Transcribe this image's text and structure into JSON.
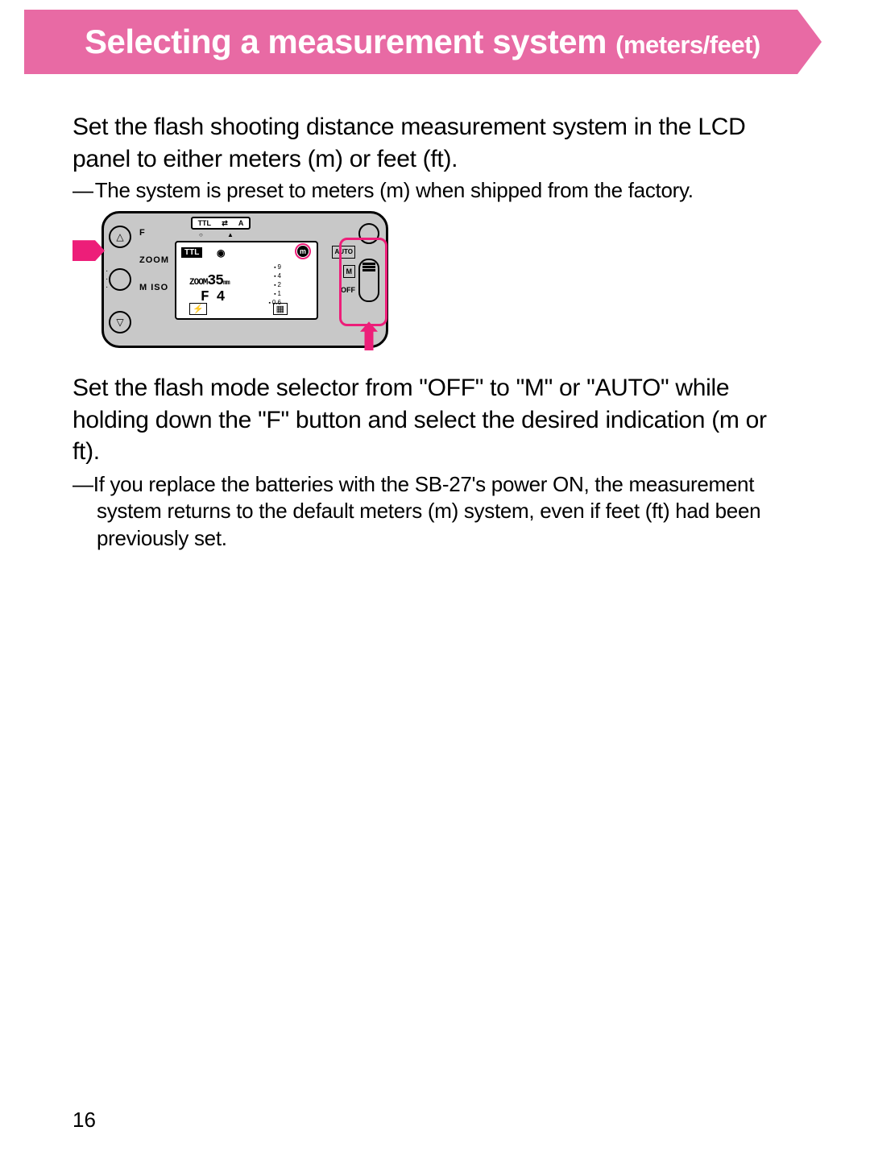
{
  "colors": {
    "banner_bg": "#e86aa4",
    "banner_text": "#ffffff",
    "accent": "#ed1e79",
    "page_bg": "#ffffff",
    "device_bg": "#c8c8c8",
    "text": "#000000"
  },
  "banner": {
    "title_main": "Selecting a measurement system",
    "title_sub": "(meters/feet)"
  },
  "intro": "Set the flash shooting distance measurement system in the LCD panel to either meters (m) or feet (ft).",
  "note1_prefix": "—",
  "note1": "The system is preset to meters (m) when shipped from the factory.",
  "diagram": {
    "left_buttons": {
      "top_glyph": "△",
      "mid_glyph": "",
      "bot_glyph": "▽"
    },
    "left_labels": [
      "F",
      "ZOOM",
      "M ISO"
    ],
    "top_slider": {
      "left": "TTL",
      "mid": "⇄",
      "right": "A",
      "marks": "○   ▲"
    },
    "lcd": {
      "ttl": "TTL",
      "eye_icon": "◉",
      "m_indicator": "m",
      "zoom_label": "ZOOM",
      "zoom_value": "35",
      "zoom_unit": "mm",
      "f_value": "F 4",
      "scale": [
        "9",
        "4",
        "2",
        "1",
        "0.6"
      ],
      "bolt_icon": "⚡",
      "head_icon": "▦"
    },
    "switch": {
      "auto": "AUTO",
      "m": "M",
      "off": "OFF"
    }
  },
  "para2": "Set the flash mode selector from \"OFF\" to \"M\" or \"AUTO\" while holding down the \"F\" button and select the desired indication (m or ft).",
  "note2_prefix": "—",
  "note2": "If you replace the batteries with the SB-27's power ON, the measurement system returns to the default meters (m) system, even if feet (ft) had been previously set.",
  "page_number": "16"
}
